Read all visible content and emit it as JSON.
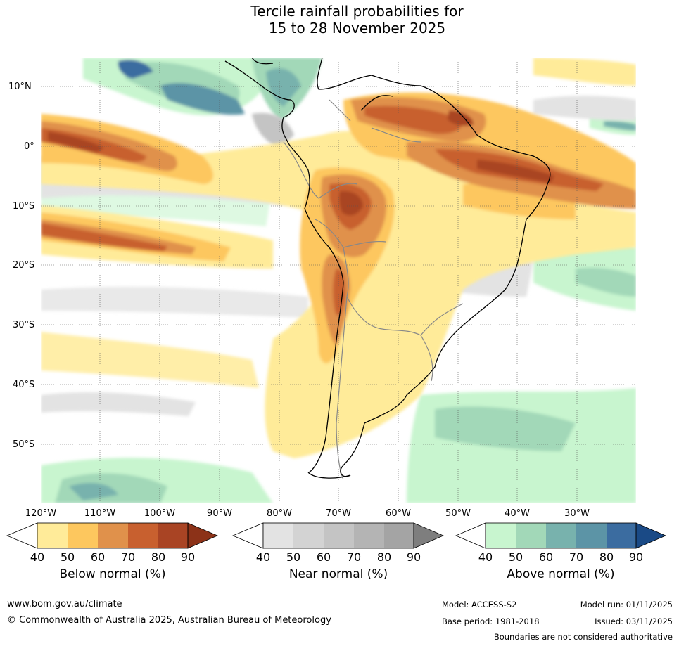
{
  "title": {
    "line1": "Tercile rainfall probabilities for",
    "line2": "15 to 28 November 2025"
  },
  "lat_labels": [
    "10°N",
    "0°",
    "10°S",
    "20°S",
    "30°S",
    "40°S",
    "50°S"
  ],
  "lon_labels": [
    "120°W",
    "110°W",
    "100°W",
    "90°W",
    "80°W",
    "70°W",
    "60°W",
    "50°W",
    "40°W",
    "30°W"
  ],
  "colorbars": [
    {
      "name": "below",
      "title": "Below normal (%)",
      "ticks": [
        "40",
        "50",
        "60",
        "70",
        "80",
        "90"
      ],
      "colors": [
        "#ffeb99",
        "#fdc75e",
        "#e0914b",
        "#c8602f",
        "#a94424",
        "#8c3218"
      ]
    },
    {
      "name": "near",
      "title": "Near normal (%)",
      "ticks": [
        "40",
        "50",
        "60",
        "70",
        "80",
        "90"
      ],
      "colors": [
        "#e3e3e3",
        "#d3d3d3",
        "#c4c4c4",
        "#b4b4b4",
        "#a4a4a4",
        "#7e7e7e"
      ]
    },
    {
      "name": "above",
      "title": "Above normal (%)",
      "ticks": [
        "40",
        "50",
        "60",
        "70",
        "80",
        "90"
      ],
      "colors": [
        "#c8f5cf",
        "#a2d8b8",
        "#78b2ad",
        "#5c94a6",
        "#3b6ca0",
        "#1a4a86"
      ]
    }
  ],
  "footer": {
    "website": "www.bom.gov.au/climate",
    "copyright": "© Commonwealth of Australia 2025, Australian Bureau of Meteorology",
    "model": "Model: ACCESS-S2",
    "base_period": "Base period: 1981-2018",
    "model_run": "Model run: 01/11/2025",
    "issued": "Issued: 03/11/2025",
    "disclaimer": "Boundaries are not considered authoritative"
  }
}
